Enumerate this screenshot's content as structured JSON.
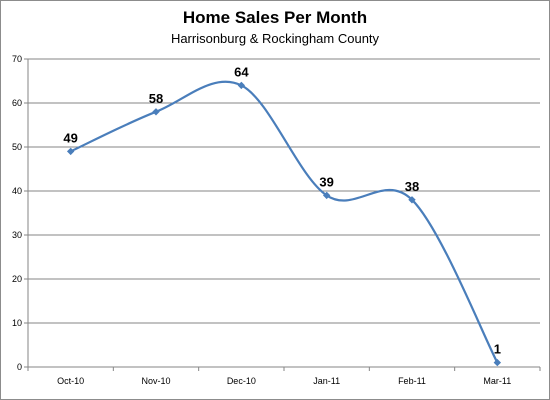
{
  "chart_data": {
    "type": "line",
    "title": "Home Sales Per Month",
    "subtitle": "Harrisonburg & Rockingham County",
    "xlabel": "",
    "ylabel": "",
    "categories": [
      "Oct-10",
      "Nov-10",
      "Dec-10",
      "Jan-11",
      "Feb-11",
      "Mar-11"
    ],
    "series": [
      {
        "values": [
          49,
          58,
          64,
          39,
          38,
          1
        ],
        "color": "#4a7ebb",
        "smooth": true
      }
    ],
    "ylim": [
      0,
      70
    ],
    "yticks": [
      0,
      10,
      20,
      30,
      40,
      50,
      60,
      70
    ],
    "grid": true,
    "legend": "none",
    "data_labels": [
      "49",
      "58",
      "64",
      "39",
      "38",
      "1"
    ]
  }
}
